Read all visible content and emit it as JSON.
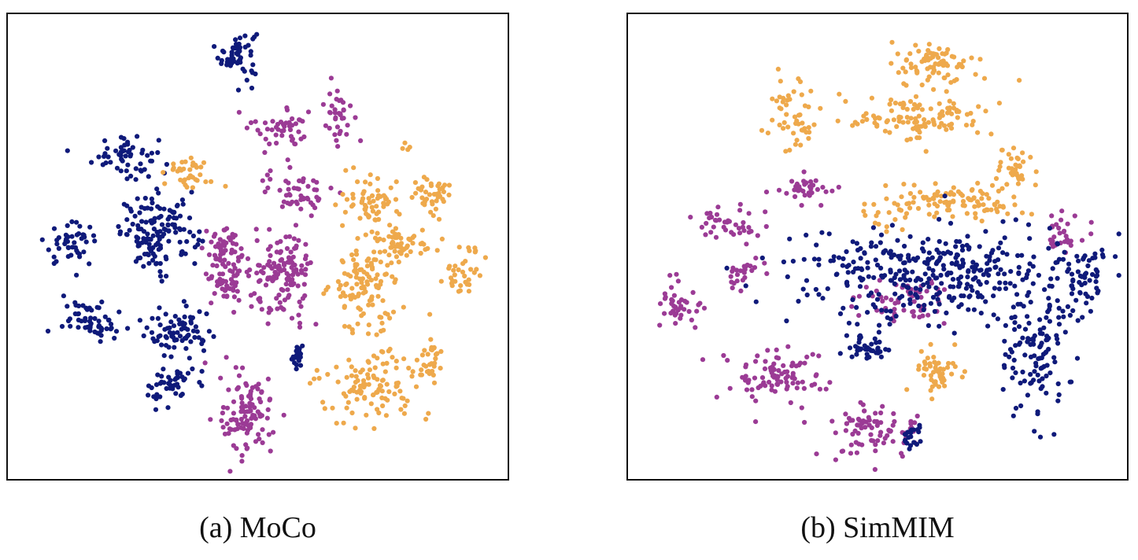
{
  "chart_data": [
    {
      "type": "scatter",
      "caption": "(a) MoCo",
      "title": "",
      "xlabel": "",
      "ylabel": "",
      "xlim": [
        0,
        100
      ],
      "ylim": [
        0,
        100
      ],
      "grid": false,
      "axes_ticks": false,
      "colors": {
        "navy": "#0f1a7a",
        "purple": "#9b3b95",
        "orange": "#eea94c"
      },
      "clusters": [
        {
          "color": "navy",
          "cx": 46,
          "cy": 92,
          "rx": 3.5,
          "ry": 5,
          "n": 55
        },
        {
          "color": "navy",
          "cx": 23,
          "cy": 70,
          "rx": 6,
          "ry": 4.5,
          "n": 55
        },
        {
          "color": "navy",
          "cx": 12,
          "cy": 50.5,
          "rx": 5,
          "ry": 4,
          "n": 45
        },
        {
          "color": "navy",
          "cx": 30,
          "cy": 53,
          "rx": 7,
          "ry": 7.5,
          "n": 140
        },
        {
          "color": "navy",
          "cx": 17,
          "cy": 34,
          "rx": 6,
          "ry": 3.5,
          "n": 60
        },
        {
          "color": "navy",
          "cx": 34,
          "cy": 31,
          "rx": 6,
          "ry": 5,
          "n": 70
        },
        {
          "color": "navy",
          "cx": 32,
          "cy": 20,
          "rx": 4.5,
          "ry": 4.5,
          "n": 45
        },
        {
          "color": "navy",
          "cx": 58,
          "cy": 26,
          "rx": 1.5,
          "ry": 2.5,
          "n": 20
        },
        {
          "color": "purple",
          "cx": 55,
          "cy": 76,
          "rx": 5.5,
          "ry": 4.5,
          "n": 45
        },
        {
          "color": "purple",
          "cx": 66,
          "cy": 80,
          "rx": 3,
          "ry": 6,
          "n": 35
        },
        {
          "color": "purple",
          "cx": 58,
          "cy": 62,
          "rx": 6,
          "ry": 4.5,
          "n": 50
        },
        {
          "color": "purple",
          "cx": 44,
          "cy": 46,
          "rx": 4.5,
          "ry": 9,
          "n": 100
        },
        {
          "color": "purple",
          "cx": 55,
          "cy": 43,
          "rx": 5.5,
          "ry": 9,
          "n": 130
        },
        {
          "color": "purple",
          "cx": 48,
          "cy": 13,
          "rx": 5,
          "ry": 8,
          "n": 110
        },
        {
          "color": "orange",
          "cx": 36,
          "cy": 66,
          "rx": 4,
          "ry": 3,
          "n": 35
        },
        {
          "color": "orange",
          "cx": 73,
          "cy": 60,
          "rx": 5.5,
          "ry": 5,
          "n": 60
        },
        {
          "color": "orange",
          "cx": 85,
          "cy": 62,
          "rx": 4,
          "ry": 4,
          "n": 40
        },
        {
          "color": "orange",
          "cx": 80,
          "cy": 51,
          "rx": 5.5,
          "ry": 3.5,
          "n": 45
        },
        {
          "color": "orange",
          "cx": 72,
          "cy": 42,
          "rx": 6.5,
          "ry": 9,
          "n": 120
        },
        {
          "color": "orange",
          "cx": 92,
          "cy": 44,
          "rx": 3.5,
          "ry": 5,
          "n": 35
        },
        {
          "color": "orange",
          "cx": 73,
          "cy": 20,
          "rx": 9,
          "ry": 7,
          "n": 110
        },
        {
          "color": "orange",
          "cx": 85,
          "cy": 25,
          "rx": 3,
          "ry": 3.5,
          "n": 30
        },
        {
          "color": "orange",
          "cx": 80,
          "cy": 72,
          "rx": 1,
          "ry": 1,
          "n": 4
        }
      ]
    },
    {
      "type": "scatter",
      "caption": "(b) SimMIM",
      "title": "",
      "xlabel": "",
      "ylabel": "",
      "xlim": [
        0,
        100
      ],
      "ylim": [
        0,
        100
      ],
      "grid": false,
      "axes_ticks": false,
      "colors": {
        "navy": "#0f1a7a",
        "purple": "#9b3b95",
        "orange": "#eea94c"
      },
      "clusters": [
        {
          "color": "orange",
          "cx": 62,
          "cy": 90,
          "rx": 10,
          "ry": 4,
          "n": 80
        },
        {
          "color": "orange",
          "cx": 33,
          "cy": 78,
          "rx": 5,
          "ry": 7,
          "n": 50
        },
        {
          "color": "orange",
          "cx": 58,
          "cy": 78,
          "rx": 14,
          "ry": 4,
          "n": 110
        },
        {
          "color": "orange",
          "cx": 78,
          "cy": 67,
          "rx": 4,
          "ry": 4,
          "n": 35
        },
        {
          "color": "orange",
          "cx": 66,
          "cy": 60,
          "rx": 14,
          "ry": 3.5,
          "n": 100
        },
        {
          "color": "orange",
          "cx": 62,
          "cy": 23,
          "rx": 4,
          "ry": 4,
          "n": 50
        },
        {
          "color": "orange",
          "cx": 51,
          "cy": 56,
          "rx": 6,
          "ry": 3,
          "n": 15
        },
        {
          "color": "purple",
          "cx": 36,
          "cy": 63,
          "rx": 5,
          "ry": 2.5,
          "n": 35
        },
        {
          "color": "purple",
          "cx": 20,
          "cy": 55,
          "rx": 8,
          "ry": 3,
          "n": 40
        },
        {
          "color": "purple",
          "cx": 23,
          "cy": 44,
          "rx": 3.5,
          "ry": 3,
          "n": 25
        },
        {
          "color": "purple",
          "cx": 10,
          "cy": 37,
          "rx": 4,
          "ry": 5,
          "n": 40
        },
        {
          "color": "purple",
          "cx": 29,
          "cy": 22,
          "rx": 9,
          "ry": 5.5,
          "n": 90
        },
        {
          "color": "purple",
          "cx": 50,
          "cy": 10,
          "rx": 9,
          "ry": 5,
          "n": 85
        },
        {
          "color": "purple",
          "cx": 55,
          "cy": 38,
          "rx": 9,
          "ry": 5,
          "n": 55
        },
        {
          "color": "purple",
          "cx": 88,
          "cy": 52,
          "rx": 5,
          "ry": 6,
          "n": 30
        },
        {
          "color": "navy",
          "cx": 62,
          "cy": 44,
          "rx": 28,
          "ry": 9,
          "n": 380
        },
        {
          "color": "navy",
          "cx": 83,
          "cy": 27,
          "rx": 6,
          "ry": 12,
          "n": 110
        },
        {
          "color": "navy",
          "cx": 48,
          "cy": 28,
          "rx": 4,
          "ry": 2.5,
          "n": 40
        },
        {
          "color": "navy",
          "cx": 57,
          "cy": 9,
          "rx": 2,
          "ry": 3,
          "n": 20
        },
        {
          "color": "navy",
          "cx": 93,
          "cy": 44,
          "rx": 3,
          "ry": 5,
          "n": 40
        }
      ]
    }
  ]
}
